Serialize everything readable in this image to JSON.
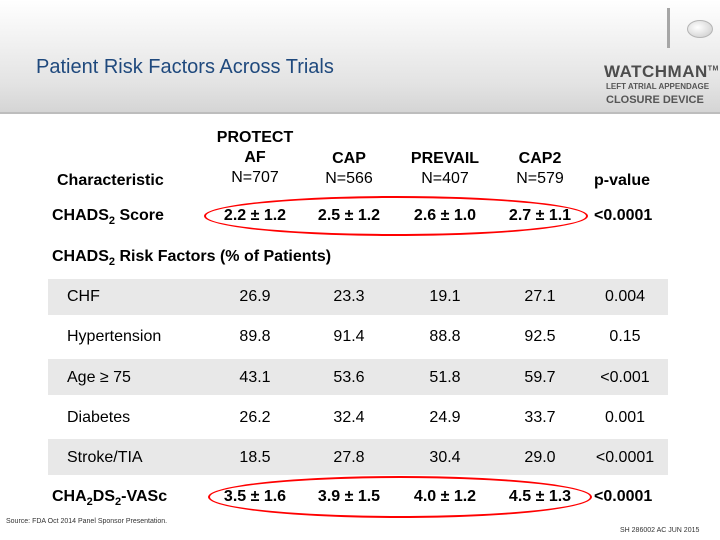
{
  "title": "Patient Risk Factors Across Trials",
  "logo": {
    "name": "WATCHMAN",
    "tm": "TM",
    "line1": "LEFT ATRIAL APPENDAGE",
    "line2": "CLOSURE DEVICE"
  },
  "table": {
    "headers": {
      "characteristic": "Characteristic",
      "protect_line1": "PROTECT",
      "protect_line2": "AF",
      "protect_n": "N=707",
      "cap_line1": "CAP",
      "cap_n": "N=566",
      "prevail_line1": "PREVAIL",
      "prevail_n": "N=407",
      "cap2_line1": "CAP2",
      "cap2_n": "N=579",
      "pvalue": "p-value"
    },
    "chads_row": {
      "label_main": "CHADS",
      "label_sub": "2",
      "label_rest": " Score",
      "values": [
        "2.2 ± 1.2",
        "2.5 ± 1.2",
        "2.6 ± 1.0",
        "2.7 ± 1.1"
      ],
      "pvalue": "<0.0001"
    },
    "section": {
      "main": "CHADS",
      "sub": "2",
      "rest": " Risk Factors (% of Patients)"
    },
    "risk_rows": [
      {
        "label": "CHF",
        "values": [
          "26.9",
          "23.3",
          "19.1",
          "27.1"
        ],
        "pvalue": "0.004"
      },
      {
        "label": "Hypertension",
        "values": [
          "89.8",
          "91.4",
          "88.8",
          "92.5"
        ],
        "pvalue": "0.15"
      },
      {
        "label": "Age ≥ 75",
        "values": [
          "43.1",
          "53.6",
          "51.8",
          "59.7"
        ],
        "pvalue": "<0.001"
      },
      {
        "label": "Diabetes",
        "values": [
          "26.2",
          "32.4",
          "24.9",
          "33.7"
        ],
        "pvalue": "0.001"
      },
      {
        "label": "Stroke/TIA",
        "values": [
          "18.5",
          "27.8",
          "30.4",
          "29.0"
        ],
        "pvalue": "<0.0001"
      }
    ],
    "cha_row": {
      "p1": "CHA",
      "s1": "2",
      "p2": "DS",
      "s2": "2",
      "p3": "-VASc",
      "values": [
        "3.5 ± 1.6",
        "3.9 ± 1.5",
        "4.0 ± 1.2",
        "4.5 ± 1.3"
      ],
      "pvalue": "<0.0001"
    }
  },
  "source": "Source: FDA Oct 2014 Panel Sponsor Presentation.",
  "footer_code": "SH 286002 AC JUN 2015",
  "colors": {
    "title": "#1f497d",
    "highlight": "#ff0000",
    "band": "#e8e8e8"
  }
}
